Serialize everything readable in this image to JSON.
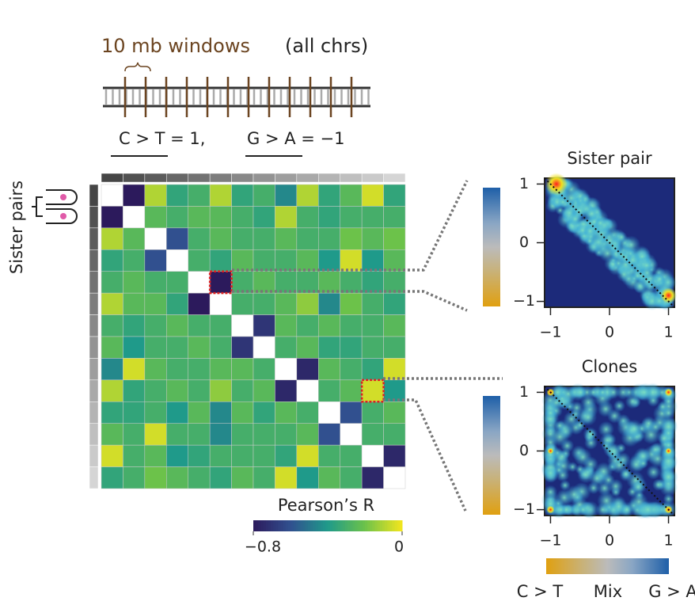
{
  "chart_data": [
    {
      "type": "heatmap",
      "annotations": [
        "10 mb windows",
        "(all chrs)",
        "C > T = 1,",
        "G > A = −1"
      ],
      "ylabel": "Sister pairs",
      "colorbar_label": "Pearson’s R",
      "zlim": [
        -0.8,
        0
      ],
      "zticks": [
        {
          "value": -0.8,
          "label": "−0.8"
        },
        0
      ],
      "colors": [
        "#2c1a5c",
        "#31508f",
        "#1f9a8a",
        "#6cc24a",
        "#f4e61e"
      ],
      "highlights": [
        [
          4,
          5
        ],
        [
          9,
          12
        ]
      ],
      "values": [
        [
          null,
          -0.8,
          -0.1,
          -0.35,
          -0.3,
          -0.1,
          -0.35,
          -0.3,
          -0.45,
          -0.1,
          -0.35,
          -0.25,
          -0.05,
          -0.35
        ],
        [
          -0.8,
          null,
          -0.25,
          -0.3,
          -0.25,
          -0.25,
          -0.3,
          -0.35,
          -0.1,
          -0.3,
          -0.35,
          -0.3,
          -0.3,
          -0.3
        ],
        [
          -0.1,
          -0.25,
          null,
          -0.6,
          -0.3,
          -0.25,
          -0.3,
          -0.3,
          -0.25,
          -0.3,
          -0.3,
          -0.2,
          -0.25,
          -0.2
        ],
        [
          -0.35,
          -0.3,
          -0.6,
          null,
          -0.3,
          -0.35,
          -0.25,
          -0.3,
          -0.3,
          -0.25,
          -0.4,
          -0.05,
          -0.4,
          -0.25
        ],
        [
          -0.3,
          -0.25,
          -0.3,
          -0.3,
          null,
          -0.8,
          -0.3,
          -0.25,
          -0.3,
          -0.3,
          -0.25,
          -0.3,
          -0.35,
          -0.3
        ],
        [
          -0.1,
          -0.25,
          -0.25,
          -0.35,
          -0.8,
          null,
          -0.3,
          -0.3,
          -0.25,
          -0.15,
          -0.45,
          -0.2,
          -0.3,
          -0.35
        ],
        [
          -0.3,
          -0.35,
          -0.3,
          -0.25,
          -0.3,
          -0.3,
          null,
          -0.7,
          -0.25,
          -0.3,
          -0.25,
          -0.3,
          -0.3,
          -0.25
        ],
        [
          -0.25,
          -0.4,
          -0.3,
          -0.3,
          -0.25,
          -0.3,
          -0.7,
          null,
          -0.3,
          -0.25,
          -0.35,
          -0.35,
          -0.3,
          -0.3
        ],
        [
          -0.45,
          -0.05,
          -0.25,
          -0.3,
          -0.3,
          -0.25,
          -0.25,
          -0.3,
          null,
          -0.75,
          -0.25,
          -0.3,
          -0.35,
          -0.05
        ],
        [
          -0.1,
          -0.35,
          -0.3,
          -0.25,
          -0.3,
          -0.15,
          -0.3,
          -0.25,
          -0.75,
          null,
          -0.3,
          -0.25,
          -0.05,
          -0.4
        ],
        [
          -0.35,
          -0.35,
          -0.3,
          -0.4,
          -0.25,
          -0.45,
          -0.25,
          -0.35,
          -0.25,
          -0.3,
          null,
          -0.6,
          -0.3,
          -0.25
        ],
        [
          -0.25,
          -0.3,
          -0.05,
          -0.3,
          -0.3,
          -0.45,
          -0.3,
          -0.3,
          -0.3,
          -0.25,
          -0.6,
          null,
          -0.3,
          -0.3
        ],
        [
          -0.05,
          -0.3,
          -0.25,
          -0.4,
          -0.35,
          -0.3,
          -0.3,
          -0.3,
          -0.35,
          -0.05,
          -0.3,
          -0.3,
          null,
          -0.75
        ],
        [
          -0.35,
          -0.3,
          -0.2,
          -0.25,
          -0.3,
          -0.35,
          -0.25,
          -0.3,
          -0.05,
          -0.4,
          -0.25,
          -0.3,
          -0.75,
          null
        ]
      ]
    },
    {
      "type": "density",
      "title": "Sister pair",
      "xlim": [
        -1.1,
        1.1
      ],
      "ylim": [
        -1.1,
        1.1
      ],
      "xticks": [
        {
          "value": -1,
          "label": "−1"
        },
        0,
        1
      ],
      "yticks": [
        {
          "value": -1,
          "label": "−1"
        },
        0,
        1
      ]
    },
    {
      "type": "density",
      "title": "Clones",
      "xlim": [
        -1.1,
        1.1
      ],
      "ylim": [
        -1.1,
        1.1
      ],
      "xticks": [
        {
          "value": -1,
          "label": "−1"
        },
        0,
        1
      ],
      "yticks": [
        {
          "value": -1,
          "label": "−1"
        },
        0,
        1
      ],
      "colorbar_labels": [
        "C > T",
        "Mix",
        "G > A"
      ]
    }
  ]
}
